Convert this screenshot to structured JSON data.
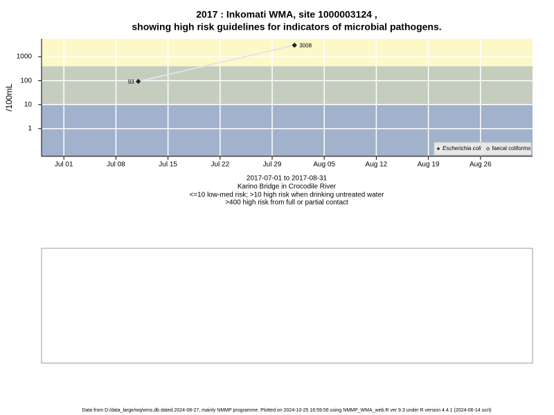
{
  "chart_data": {
    "type": "line",
    "title": [
      "2017 : Inkomati WMA, site 1000003124 ,",
      "showing high risk guidelines for indicators of microbial pathogens."
    ],
    "ylabel": "/100mL",
    "xlabel": [
      "2017-07-01 to 2017-08-31",
      "Karino Bridge in Crocodile River",
      "<=10 low-med risk; >10 high risk when drinking untreated water",
      ">400 high risk from full or partial contact"
    ],
    "footer": "Data from D:/data_large/wq/wms.db dated 2024-08-27, mainly NMMP programme. Plotted on 2024-10-25 16:59:56 using NMMP_WMA_web.R ver 9.3 under R version 4.4.1 (2024-06-14 ucrt)",
    "log_y": true,
    "grid": true,
    "legend": "bottom-right",
    "xlim": [
      "2017-06-28",
      "2017-09-02"
    ],
    "xticks": [
      {
        "value": "2017-07-01",
        "label": "Jul 01"
      },
      {
        "value": "2017-07-08",
        "label": "Jul 08"
      },
      {
        "value": "2017-07-15",
        "label": "Jul 15"
      },
      {
        "value": "2017-07-22",
        "label": "Jul 22"
      },
      {
        "value": "2017-07-29",
        "label": "Jul 29"
      },
      {
        "value": "2017-08-05",
        "label": "Aug 05"
      },
      {
        "value": "2017-08-12",
        "label": "Aug 12"
      },
      {
        "value": "2017-08-19",
        "label": "Aug 19"
      },
      {
        "value": "2017-08-26",
        "label": "Aug 26"
      }
    ],
    "ylim": [
      0.07,
      5600
    ],
    "yticks": [
      1,
      10,
      100,
      1000
    ],
    "bands": [
      {
        "from": 0.07,
        "to": 10,
        "color": "#a2b2cc"
      },
      {
        "from": 10,
        "to": 400,
        "color": "#c5cdbf"
      },
      {
        "from": 400,
        "to": 5600,
        "color": "#fdf8c8"
      }
    ],
    "series": [
      {
        "name": "Escherichia coli",
        "color": "#222222",
        "x": [
          "2017-07-11",
          "2017-08-01"
        ],
        "values": [
          93,
          3008
        ]
      },
      {
        "name": "faecal coliforms",
        "color": "#ffffff",
        "x": [],
        "values": []
      }
    ]
  }
}
